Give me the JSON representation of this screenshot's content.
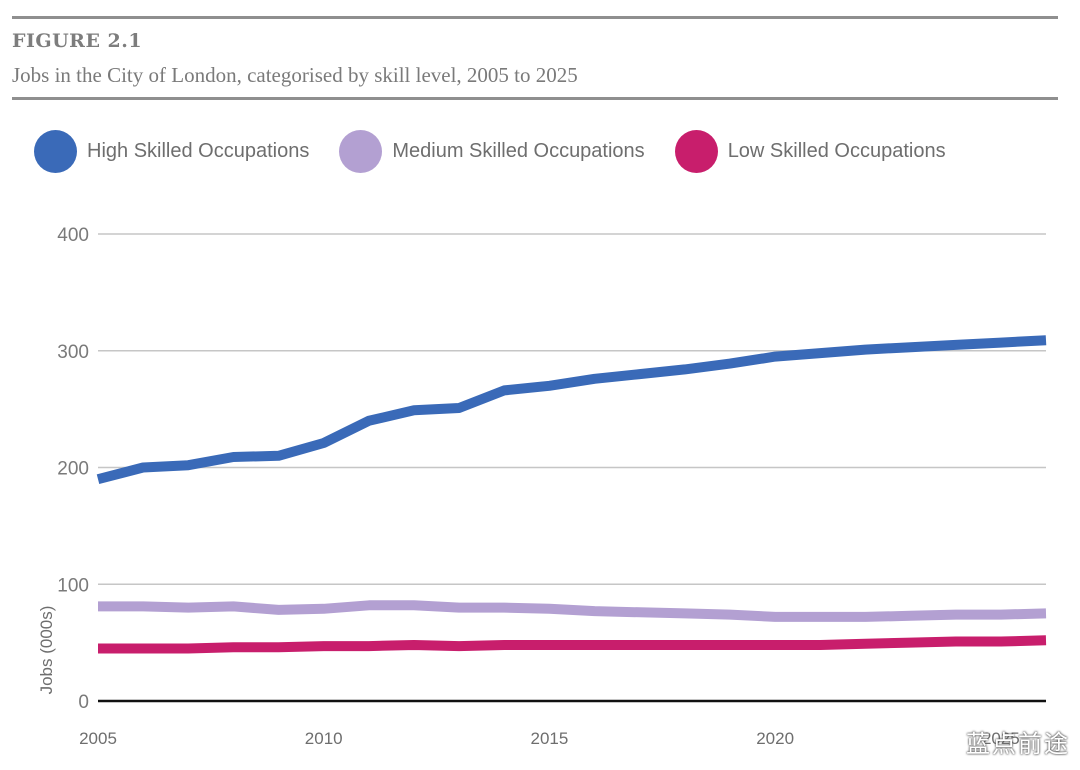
{
  "figure": {
    "label": "FIGURE 2.1",
    "title": "Jobs in the City of London, categorised by skill level, 2005 to 2025"
  },
  "legend": [
    {
      "name": "High Skilled Occupations",
      "color": "#3a6ab8"
    },
    {
      "name": "Medium Skilled Occupations",
      "color": "#b3a0d2"
    },
    {
      "name": "Low Skilled Occupations",
      "color": "#c81e6c"
    }
  ],
  "watermark": "蓝点前途",
  "chart_data": {
    "type": "line",
    "title": "Jobs in the City of London, categorised by skill level, 2005 to 2025",
    "xlabel": "",
    "ylabel": "Jobs (000s)",
    "xlim": [
      2005,
      2026
    ],
    "ylim": [
      0,
      400
    ],
    "x_ticks": [
      "2005",
      "2010",
      "2015",
      "2020",
      "2025"
    ],
    "y_ticks": [
      "0",
      "100",
      "200",
      "300",
      "400"
    ],
    "grid": true,
    "legend_position": "top",
    "x": [
      2005,
      2006,
      2007,
      2008,
      2009,
      2010,
      2011,
      2012,
      2013,
      2014,
      2015,
      2016,
      2017,
      2018,
      2019,
      2020,
      2021,
      2022,
      2023,
      2024,
      2025,
      2026
    ],
    "series": [
      {
        "name": "High Skilled Occupations",
        "color": "#3a6ab8",
        "values": [
          190,
          200,
          202,
          209,
          210,
          221,
          240,
          249,
          251,
          266,
          270,
          276,
          280,
          284,
          289,
          295,
          298,
          301,
          303,
          305,
          307,
          309
        ]
      },
      {
        "name": "Medium Skilled Occupations",
        "color": "#b3a0d2",
        "values": [
          81,
          81,
          80,
          81,
          78,
          79,
          82,
          82,
          80,
          80,
          79,
          77,
          76,
          75,
          74,
          72,
          72,
          72,
          73,
          74,
          74,
          75
        ]
      },
      {
        "name": "Low Skilled Occupations",
        "color": "#c81e6c",
        "values": [
          45,
          45,
          45,
          46,
          46,
          47,
          47,
          48,
          47,
          48,
          48,
          48,
          48,
          48,
          48,
          48,
          48,
          49,
          50,
          51,
          51,
          52
        ]
      }
    ]
  }
}
